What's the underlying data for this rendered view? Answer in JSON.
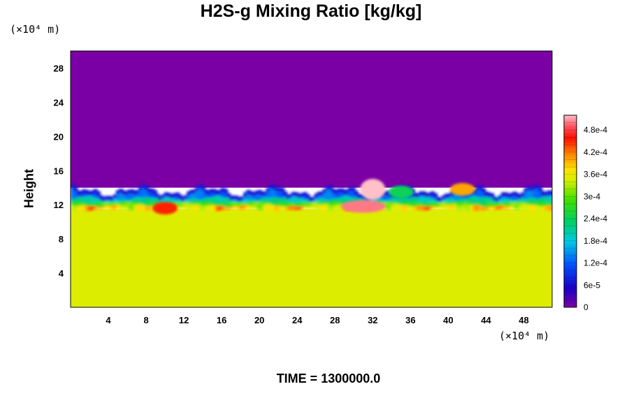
{
  "title": "H2S-g Mixing Ratio [kg/kg]",
  "footer": "TIME = 1300000.0",
  "chart_data": {
    "type": "heatmap",
    "title": "H2S-g Mixing Ratio [kg/kg]",
    "ylabel": "Height",
    "x_unit": "(×10⁴ m)",
    "y_unit": "(×10⁴ m)",
    "xlim": [
      0,
      51
    ],
    "ylim": [
      0,
      30
    ],
    "x_ticks": [
      4,
      8,
      12,
      16,
      20,
      24,
      28,
      32,
      36,
      40,
      44,
      48
    ],
    "y_ticks": [
      4,
      8,
      12,
      16,
      20,
      24,
      28
    ],
    "colorbar": {
      "min": 0,
      "max": 0.00052,
      "tick_values": [
        0,
        6e-05,
        0.00012,
        0.00018,
        0.00024,
        0.0003,
        0.00036,
        0.00042,
        0.00048
      ],
      "tick_labels": [
        "0",
        "6e-5",
        "1.2e-4",
        "1.8e-4",
        "2.4e-4",
        "3e-4",
        "3.6e-4",
        "4.2e-4",
        "4.8e-4"
      ]
    },
    "regions": [
      {
        "description": "upper layer",
        "y_range": [
          14,
          30
        ],
        "value": 0
      },
      {
        "description": "lower layer",
        "y_range": [
          0,
          11.5
        ],
        "value": 0.00035
      },
      {
        "description": "transition band",
        "y_range": [
          11,
          15
        ],
        "value_range": [
          0,
          0.00052
        ]
      }
    ],
    "plumes": [
      {
        "x": 10,
        "y": 11.6,
        "value": 0.00045
      },
      {
        "x": 31,
        "y": 11.8,
        "value": 0.0005
      },
      {
        "x": 32,
        "y": 13.8,
        "value": 0.00052
      },
      {
        "x": 41.5,
        "y": 13.8,
        "value": 0.0004
      },
      {
        "x": 35,
        "y": 13.5,
        "value": 0.00024
      }
    ]
  }
}
